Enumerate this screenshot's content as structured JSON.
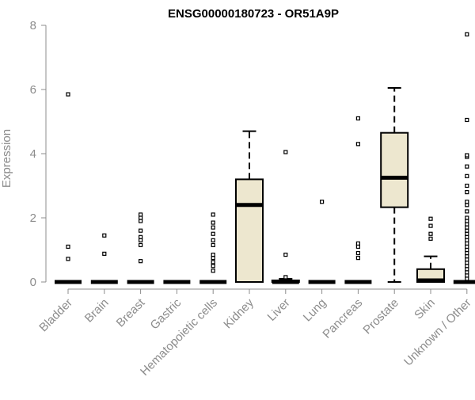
{
  "chart_data": {
    "type": "boxplot",
    "title": "ENSG00000180723 - OR51A9P",
    "ylabel": "Expression",
    "xlabel": "",
    "ylim": [
      0,
      8
    ],
    "yticks": [
      "0",
      "2",
      "4",
      "6",
      "8"
    ],
    "grid": false,
    "legend": "none",
    "colors": {
      "box_fill": "#ede7cf",
      "stroke": "#000000",
      "axis_text": "#8c8c8c",
      "axis": "#8c8c8c"
    },
    "categories": [
      "Bladder",
      "Brain",
      "Breast",
      "Gastric",
      "Hematopoietic cells",
      "Kidney",
      "Liver",
      "Lung",
      "Pancreas",
      "Prostate",
      "Skin",
      "Unknown / Other"
    ],
    "boxes": [
      {
        "q1": 0,
        "median": 0,
        "q3": 0,
        "whisker_low": 0,
        "whisker_high": 0,
        "outliers": [
          0.72,
          1.1,
          5.85
        ]
      },
      {
        "q1": 0,
        "median": 0,
        "q3": 0,
        "whisker_low": 0,
        "whisker_high": 0,
        "outliers": [
          0.88,
          1.45
        ]
      },
      {
        "q1": 0,
        "median": 0,
        "q3": 0,
        "whisker_low": 0,
        "whisker_high": 0,
        "outliers": [
          0.65,
          1.15,
          1.3,
          1.4,
          1.6,
          1.9,
          2.0,
          2.1
        ]
      },
      {
        "q1": 0,
        "median": 0,
        "q3": 0,
        "whisker_low": 0,
        "whisker_high": 0,
        "outliers": []
      },
      {
        "q1": 0,
        "median": 0,
        "q3": 0,
        "whisker_low": 0,
        "whisker_high": 0,
        "outliers": [
          0.35,
          0.5,
          0.62,
          0.75,
          0.85,
          1.15,
          1.3,
          1.5,
          1.7,
          1.85,
          2.1
        ]
      },
      {
        "q1": 0,
        "median": 2.4,
        "q3": 3.2,
        "whisker_low": 0,
        "whisker_high": 4.7,
        "outliers": []
      },
      {
        "q1": 0,
        "median": 0,
        "q3": 0.05,
        "whisker_low": 0,
        "whisker_high": 0.1,
        "outliers": [
          0.15,
          0.85,
          4.05
        ]
      },
      {
        "q1": 0,
        "median": 0,
        "q3": 0,
        "whisker_low": 0,
        "whisker_high": 0,
        "outliers": [
          2.5
        ]
      },
      {
        "q1": 0,
        "median": 0,
        "q3": 0,
        "whisker_low": 0,
        "whisker_high": 0,
        "outliers": [
          0.75,
          0.9,
          1.1,
          1.2,
          4.3,
          5.1
        ]
      },
      {
        "q1": 2.33,
        "median": 3.25,
        "q3": 4.65,
        "whisker_low": 0,
        "whisker_high": 6.05,
        "outliers": []
      },
      {
        "q1": 0,
        "median": 0.05,
        "q3": 0.4,
        "whisker_low": 0,
        "whisker_high": 0.8,
        "outliers": [
          1.35,
          1.5,
          1.75,
          1.97
        ]
      },
      {
        "q1": 0,
        "median": 0,
        "q3": 0,
        "whisker_low": 0,
        "whisker_high": 0,
        "outliers": [
          0.1,
          0.2,
          0.3,
          0.4,
          0.5,
          0.6,
          0.7,
          0.8,
          0.9,
          1.0,
          1.1,
          1.2,
          1.3,
          1.4,
          1.5,
          1.6,
          1.7,
          1.8,
          1.9,
          2.0,
          2.2,
          2.4,
          2.5,
          2.8,
          3.0,
          3.3,
          3.6,
          3.9,
          3.95,
          5.05,
          7.72
        ]
      }
    ]
  }
}
